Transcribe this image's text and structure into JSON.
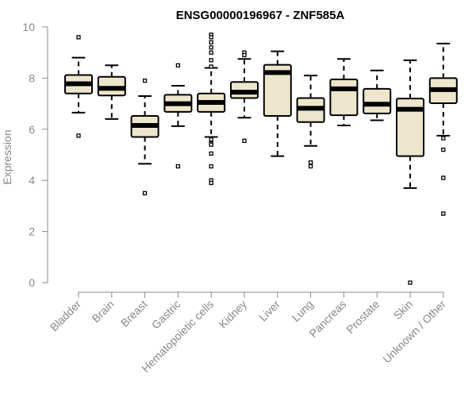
{
  "chart_data": {
    "type": "boxplot",
    "title": "ENSG00000196967 - ZNF585A",
    "xlabel": "",
    "ylabel": "Expression",
    "ylim": [
      0,
      10
    ],
    "yticks": [
      0,
      2,
      4,
      6,
      8,
      10
    ],
    "categories": [
      "Bladder",
      "Brain",
      "Breast",
      "Gastric",
      "Hematopoietic cells",
      "Kidney",
      "Liver",
      "Lung",
      "Pancreas",
      "Prostate",
      "Skin",
      "Unknown / Other"
    ],
    "boxes": [
      {
        "whislo": 6.65,
        "q1": 7.4,
        "med": 7.78,
        "q3": 8.12,
        "whishi": 8.8,
        "fliers": [
          9.6,
          5.75
        ]
      },
      {
        "whislo": 6.4,
        "q1": 7.32,
        "med": 7.6,
        "q3": 8.05,
        "whishi": 8.5,
        "fliers": []
      },
      {
        "whislo": 4.65,
        "q1": 5.7,
        "med": 6.15,
        "q3": 6.52,
        "whishi": 7.3,
        "fliers": [
          7.9,
          3.5
        ]
      },
      {
        "whislo": 6.12,
        "q1": 6.68,
        "med": 7.0,
        "q3": 7.35,
        "whishi": 7.7,
        "fliers": [
          8.5,
          4.55
        ]
      },
      {
        "whislo": 5.7,
        "q1": 6.68,
        "med": 7.05,
        "q3": 7.4,
        "whishi": 8.4,
        "fliers": [
          9.7,
          9.6,
          9.4,
          9.2,
          9.0,
          8.7,
          8.45,
          5.6,
          5.45,
          5.4,
          5.05,
          4.55,
          4.0,
          3.9
        ]
      },
      {
        "whislo": 6.45,
        "q1": 7.22,
        "med": 7.45,
        "q3": 7.85,
        "whishi": 8.75,
        "fliers": [
          9.0,
          8.9,
          5.55
        ]
      },
      {
        "whislo": 4.95,
        "q1": 6.52,
        "med": 8.22,
        "q3": 8.52,
        "whishi": 9.05,
        "fliers": []
      },
      {
        "whislo": 5.35,
        "q1": 6.28,
        "med": 6.82,
        "q3": 7.22,
        "whishi": 8.1,
        "fliers": [
          4.7,
          4.55
        ]
      },
      {
        "whislo": 6.15,
        "q1": 6.55,
        "med": 7.58,
        "q3": 7.95,
        "whishi": 8.75,
        "fliers": []
      },
      {
        "whislo": 6.35,
        "q1": 6.62,
        "med": 6.98,
        "q3": 7.58,
        "whishi": 8.3,
        "fliers": []
      },
      {
        "whislo": 3.7,
        "q1": 4.95,
        "med": 6.78,
        "q3": 7.2,
        "whishi": 8.7,
        "fliers": [
          0.0
        ]
      },
      {
        "whislo": 5.75,
        "q1": 7.02,
        "med": 7.55,
        "q3": 8.0,
        "whishi": 9.35,
        "fliers": [
          5.65,
          5.2,
          4.1,
          2.7
        ]
      }
    ],
    "colors": {
      "box_fill": "#ede6cc",
      "box_edge": "#000000",
      "median": "#000000",
      "axis": "#888888",
      "tick_text": "#888888",
      "title": "#000000"
    }
  }
}
